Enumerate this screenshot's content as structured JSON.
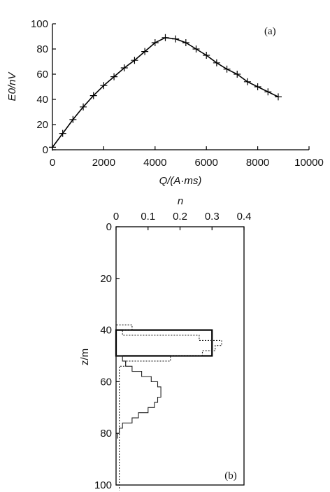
{
  "chart_data": [
    {
      "type": "line",
      "panel_label": "(a)",
      "xlabel": "Q/(A·ms)",
      "ylabel": "E0/nV",
      "xlim": [
        0,
        10000
      ],
      "ylim": [
        0,
        100
      ],
      "xticks": [
        "0",
        "2000",
        "4000",
        "6000",
        "8000",
        "10000"
      ],
      "yticks": [
        "0",
        "20",
        "40",
        "60",
        "80",
        "100"
      ],
      "series": [
        {
          "marker": "plus",
          "x": [
            0,
            400,
            800,
            1200,
            1600,
            2000,
            2400,
            2800,
            3200,
            3600,
            4000,
            4400,
            4800,
            5200,
            5600,
            6000,
            6400,
            6800,
            7200,
            7600,
            8000,
            8400,
            8800
          ],
          "y": [
            2,
            13,
            24,
            34,
            43,
            51,
            58,
            65,
            71,
            78,
            85,
            89,
            88,
            85,
            80,
            75,
            69,
            64,
            60,
            54,
            50,
            46,
            42
          ]
        }
      ]
    },
    {
      "type": "step",
      "panel_label": "(b)",
      "xlabel": "n",
      "ylabel": "z/m",
      "xlim": [
        0,
        0.4
      ],
      "ylim": [
        100,
        0
      ],
      "xticks": [
        "0",
        "0.1",
        "0.2",
        "0.3",
        "0.4"
      ],
      "yticks": [
        "0",
        "20",
        "40",
        "60",
        "80",
        "100"
      ],
      "series": [
        {
          "style": "solid-box",
          "z_top": 40,
          "z_bottom": 50,
          "n": 0.3
        },
        {
          "style": "solid",
          "z": [
            50,
            52,
            54,
            56,
            58,
            60,
            62,
            64,
            66,
            68,
            70,
            72,
            74,
            76,
            78,
            80
          ],
          "n": [
            0.02,
            0.03,
            0.05,
            0.08,
            0.11,
            0.13,
            0.14,
            0.14,
            0.13,
            0.12,
            0.1,
            0.07,
            0.05,
            0.02,
            0.01,
            0.005
          ]
        },
        {
          "style": "dotted",
          "z": [
            36,
            38,
            40,
            42,
            44,
            46,
            48,
            50,
            52,
            54,
            60,
            70,
            80,
            90,
            100
          ],
          "n": [
            0.0,
            0.05,
            0.02,
            0.26,
            0.33,
            0.31,
            0.27,
            0.17,
            0.03,
            0.01,
            0.01,
            0.01,
            0.01,
            0.01,
            0.01
          ]
        }
      ]
    }
  ]
}
